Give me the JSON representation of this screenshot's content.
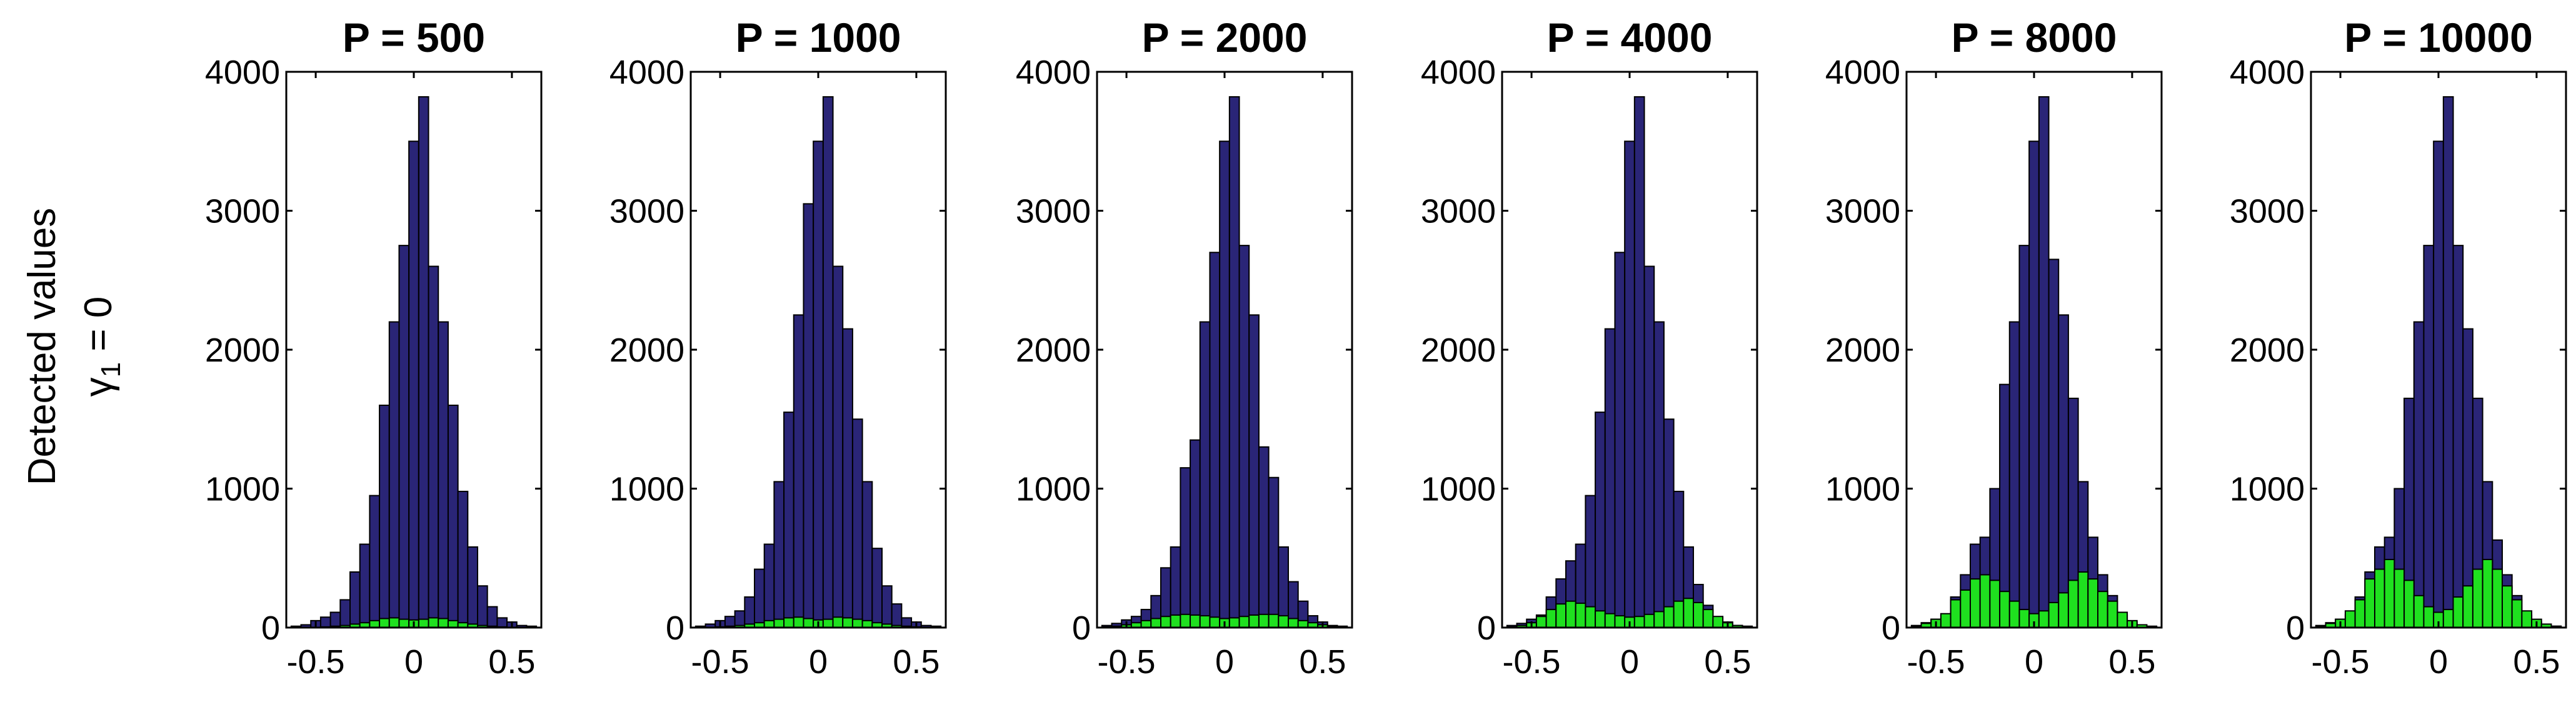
{
  "figure": {
    "ylabel_line1": "Detected values",
    "ylabel_line2_prefix": "γ",
    "ylabel_line2_sub": "1",
    "ylabel_line2_suffix": " = 0"
  },
  "colors": {
    "navy": "#2a2577",
    "green": "#1fe01f",
    "edge": "#000000"
  },
  "chart_data": [
    {
      "type": "bar",
      "title": "P = 500",
      "xlim": [
        -0.65,
        0.65
      ],
      "ylim": [
        0,
        4000
      ],
      "xticks": [
        -0.5,
        0,
        0.5
      ],
      "xtick_labels": [
        "-0.5",
        "0",
        "0.5"
      ],
      "yticks": [
        0,
        1000,
        2000,
        3000,
        4000
      ],
      "ytick_labels": [
        "0",
        "1000",
        "2000",
        "3000",
        "4000"
      ],
      "bin_centers": [
        -0.6,
        -0.55,
        -0.5,
        -0.45,
        -0.4,
        -0.35,
        -0.3,
        -0.25,
        -0.2,
        -0.15,
        -0.1,
        -0.05,
        0,
        0.05,
        0.1,
        0.15,
        0.2,
        0.25,
        0.3,
        0.35,
        0.4,
        0.45,
        0.5,
        0.55,
        0.6
      ],
      "bin_width": 0.05,
      "series": [
        {
          "color": "navy",
          "values": [
            10,
            20,
            50,
            75,
            110,
            200,
            400,
            600,
            950,
            1600,
            2200,
            2750,
            3500,
            3820,
            2600,
            2200,
            1600,
            980,
            580,
            300,
            150,
            70,
            40,
            15,
            10
          ]
        },
        {
          "color": "green",
          "values": [
            0,
            0,
            0,
            5,
            10,
            15,
            25,
            35,
            50,
            65,
            70,
            60,
            55,
            60,
            70,
            65,
            50,
            35,
            25,
            15,
            10,
            5,
            0,
            0,
            0
          ]
        }
      ]
    },
    {
      "type": "bar",
      "title": "P = 1000",
      "xlim": [
        -0.65,
        0.65
      ],
      "ylim": [
        0,
        4000
      ],
      "xticks": [
        -0.5,
        0,
        0.5
      ],
      "xtick_labels": [
        "-0.5",
        "0",
        "0.5"
      ],
      "yticks": [
        0,
        1000,
        2000,
        3000,
        4000
      ],
      "ytick_labels": [
        "0",
        "1000",
        "2000",
        "3000",
        "4000"
      ],
      "bin_centers": [
        -0.6,
        -0.55,
        -0.5,
        -0.45,
        -0.4,
        -0.35,
        -0.3,
        -0.25,
        -0.2,
        -0.15,
        -0.1,
        -0.05,
        0,
        0.05,
        0.1,
        0.15,
        0.2,
        0.25,
        0.3,
        0.35,
        0.4,
        0.45,
        0.5,
        0.55,
        0.6
      ],
      "bin_width": 0.05,
      "series": [
        {
          "color": "navy",
          "values": [
            10,
            25,
            50,
            80,
            120,
            220,
            420,
            600,
            1050,
            1550,
            2250,
            3050,
            3500,
            3820,
            2600,
            2150,
            1500,
            1050,
            570,
            300,
            170,
            70,
            40,
            15,
            10
          ]
        },
        {
          "color": "green",
          "values": [
            0,
            0,
            5,
            10,
            15,
            25,
            35,
            50,
            60,
            70,
            75,
            65,
            55,
            60,
            75,
            70,
            60,
            50,
            35,
            25,
            15,
            10,
            5,
            0,
            0
          ]
        }
      ]
    },
    {
      "type": "bar",
      "title": "P = 2000",
      "xlim": [
        -0.65,
        0.65
      ],
      "ylim": [
        0,
        4000
      ],
      "xticks": [
        -0.5,
        0,
        0.5
      ],
      "xtick_labels": [
        "-0.5",
        "0",
        "0.5"
      ],
      "yticks": [
        0,
        1000,
        2000,
        3000,
        4000
      ],
      "ytick_labels": [
        "0",
        "1000",
        "2000",
        "3000",
        "4000"
      ],
      "bin_centers": [
        -0.6,
        -0.55,
        -0.5,
        -0.45,
        -0.4,
        -0.35,
        -0.3,
        -0.25,
        -0.2,
        -0.15,
        -0.1,
        -0.05,
        0,
        0.05,
        0.1,
        0.15,
        0.2,
        0.25,
        0.3,
        0.35,
        0.4,
        0.45,
        0.5,
        0.55,
        0.6
      ],
      "bin_width": 0.05,
      "series": [
        {
          "color": "navy",
          "values": [
            15,
            30,
            55,
            80,
            130,
            230,
            430,
            580,
            1150,
            1350,
            2200,
            2700,
            3500,
            3820,
            2750,
            2250,
            1300,
            1080,
            580,
            330,
            190,
            85,
            40,
            15,
            10
          ]
        },
        {
          "color": "green",
          "values": [
            5,
            10,
            20,
            35,
            50,
            65,
            80,
            90,
            95,
            90,
            85,
            75,
            65,
            70,
            80,
            90,
            95,
            95,
            85,
            65,
            50,
            35,
            20,
            10,
            5
          ]
        }
      ]
    },
    {
      "type": "bar",
      "title": "P = 4000",
      "xlim": [
        -0.65,
        0.65
      ],
      "ylim": [
        0,
        4000
      ],
      "xticks": [
        -0.5,
        0,
        0.5
      ],
      "xtick_labels": [
        "-0.5",
        "0",
        "0.5"
      ],
      "yticks": [
        0,
        1000,
        2000,
        3000,
        4000
      ],
      "ytick_labels": [
        "0",
        "1000",
        "2000",
        "3000",
        "4000"
      ],
      "bin_centers": [
        -0.6,
        -0.55,
        -0.5,
        -0.45,
        -0.4,
        -0.35,
        -0.3,
        -0.25,
        -0.2,
        -0.15,
        -0.1,
        -0.05,
        0,
        0.05,
        0.1,
        0.15,
        0.2,
        0.25,
        0.3,
        0.35,
        0.4,
        0.45,
        0.5,
        0.55,
        0.6
      ],
      "bin_width": 0.05,
      "series": [
        {
          "color": "navy",
          "values": [
            15,
            30,
            60,
            90,
            220,
            350,
            480,
            600,
            950,
            1550,
            2150,
            2700,
            3500,
            3820,
            2600,
            2200,
            1500,
            980,
            580,
            310,
            160,
            70,
            40,
            15,
            10
          ]
        },
        {
          "color": "green",
          "values": [
            5,
            15,
            35,
            80,
            130,
            170,
            190,
            175,
            150,
            120,
            100,
            85,
            75,
            80,
            95,
            115,
            150,
            190,
            210,
            180,
            130,
            80,
            35,
            15,
            5
          ]
        }
      ]
    },
    {
      "type": "bar",
      "title": "P = 8000",
      "xlim": [
        -0.65,
        0.65
      ],
      "ylim": [
        0,
        4000
      ],
      "xticks": [
        -0.5,
        0,
        0.5
      ],
      "xtick_labels": [
        "-0.5",
        "0",
        "0.5"
      ],
      "yticks": [
        0,
        1000,
        2000,
        3000,
        4000
      ],
      "ytick_labels": [
        "0",
        "1000",
        "2000",
        "3000",
        "4000"
      ],
      "bin_centers": [
        -0.6,
        -0.55,
        -0.5,
        -0.45,
        -0.4,
        -0.35,
        -0.3,
        -0.25,
        -0.2,
        -0.15,
        -0.1,
        -0.05,
        0,
        0.05,
        0.1,
        0.15,
        0.2,
        0.25,
        0.3,
        0.35,
        0.4,
        0.45,
        0.5,
        0.55,
        0.6
      ],
      "bin_width": 0.05,
      "series": [
        {
          "color": "navy",
          "values": [
            15,
            35,
            60,
            90,
            220,
            380,
            600,
            650,
            1000,
            1750,
            2200,
            2750,
            3500,
            3820,
            2650,
            2250,
            1650,
            1050,
            650,
            380,
            230,
            90,
            40,
            15,
            10
          ]
        },
        {
          "color": "green",
          "values": [
            10,
            30,
            60,
            100,
            200,
            270,
            350,
            380,
            340,
            260,
            190,
            130,
            100,
            120,
            180,
            250,
            340,
            400,
            350,
            260,
            190,
            110,
            50,
            20,
            5
          ]
        }
      ]
    },
    {
      "type": "bar",
      "title": "P = 10000",
      "xlim": [
        -0.65,
        0.65
      ],
      "ylim": [
        0,
        4000
      ],
      "xticks": [
        -0.5,
        0,
        0.5
      ],
      "xtick_labels": [
        "-0.5",
        "0",
        "0.5"
      ],
      "yticks": [
        0,
        1000,
        2000,
        3000,
        4000
      ],
      "ytick_labels": [
        "0",
        "1000",
        "2000",
        "3000",
        "4000"
      ],
      "bin_centers": [
        -0.6,
        -0.55,
        -0.5,
        -0.45,
        -0.4,
        -0.35,
        -0.3,
        -0.25,
        -0.2,
        -0.15,
        -0.1,
        -0.05,
        0,
        0.05,
        0.1,
        0.15,
        0.2,
        0.25,
        0.3,
        0.35,
        0.4,
        0.45,
        0.5,
        0.55,
        0.6
      ],
      "bin_width": 0.05,
      "series": [
        {
          "color": "navy",
          "values": [
            15,
            35,
            60,
            90,
            220,
            400,
            580,
            650,
            1000,
            1650,
            2200,
            2750,
            3500,
            3820,
            2750,
            2150,
            1650,
            1050,
            630,
            380,
            230,
            90,
            40,
            15,
            10
          ]
        },
        {
          "color": "green",
          "values": [
            10,
            30,
            60,
            120,
            200,
            350,
            420,
            490,
            420,
            340,
            230,
            150,
            110,
            130,
            220,
            300,
            420,
            490,
            420,
            300,
            200,
            120,
            60,
            25,
            10
          ]
        }
      ]
    }
  ]
}
